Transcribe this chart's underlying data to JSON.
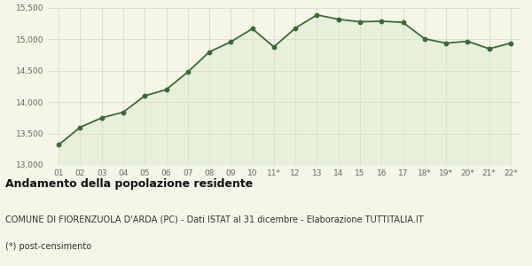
{
  "x_labels": [
    "01",
    "02",
    "03",
    "04",
    "05",
    "06",
    "07",
    "08",
    "09",
    "10",
    "11*",
    "12",
    "13",
    "14",
    "15",
    "16",
    "17",
    "18*",
    "19*",
    "20*",
    "21*",
    "22*"
  ],
  "y_values": [
    13320,
    13600,
    13750,
    13840,
    14100,
    14200,
    14480,
    14800,
    14960,
    15170,
    14880,
    15180,
    15390,
    15320,
    15280,
    15290,
    15270,
    15010,
    14940,
    14970,
    14850,
    14940
  ],
  "line_color": "#3a6b35",
  "fill_color": "#e8f0dc",
  "marker_color": "#3a6b35",
  "bg_color": "#f5f5e8",
  "grid_color": "#ddddcc",
  "ylim": [
    13000,
    15500
  ],
  "yticks": [
    13000,
    13500,
    14000,
    14500,
    15000,
    15500
  ],
  "title": "Andamento della popolazione residente",
  "subtitle": "COMUNE DI FIORENZUOLA D'ARDA (PC) - Dati ISTAT al 31 dicembre - Elaborazione TUTTITALIA.IT",
  "footnote": "(*) post-censimento",
  "title_fontsize": 9,
  "subtitle_fontsize": 7,
  "footnote_fontsize": 7,
  "tick_fontsize": 6.5
}
